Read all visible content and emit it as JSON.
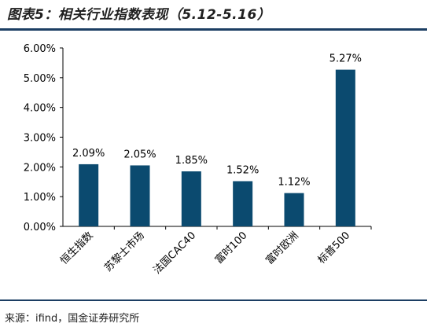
{
  "header": {
    "title": "图表5：相关行业指数表现（5.12-5.16）"
  },
  "footer": {
    "source": "来源：ifind，国金证券研究所"
  },
  "colors": {
    "bar": "#0b4a6f",
    "rule": "#1c3e63",
    "axis": "#000000"
  },
  "chart_data": {
    "type": "bar",
    "title": "图表5：相关行业指数表现（5.12-5.16）",
    "xlabel": "",
    "ylabel": "",
    "categories": [
      "恒生指数",
      "苏黎士市场",
      "法国CAC40",
      "富时100",
      "富时欧洲",
      "标普500"
    ],
    "values": [
      2.09,
      2.05,
      1.85,
      1.52,
      1.12,
      5.27
    ],
    "data_labels": [
      "2.09%",
      "2.05%",
      "1.85%",
      "1.52%",
      "1.12%",
      "5.27%"
    ],
    "unit": "%",
    "ylim": [
      0,
      6
    ],
    "yticks": [
      "0.00%",
      "1.00%",
      "2.00%",
      "3.00%",
      "4.00%",
      "5.00%",
      "6.00%"
    ],
    "grid": false,
    "legend": "none"
  }
}
